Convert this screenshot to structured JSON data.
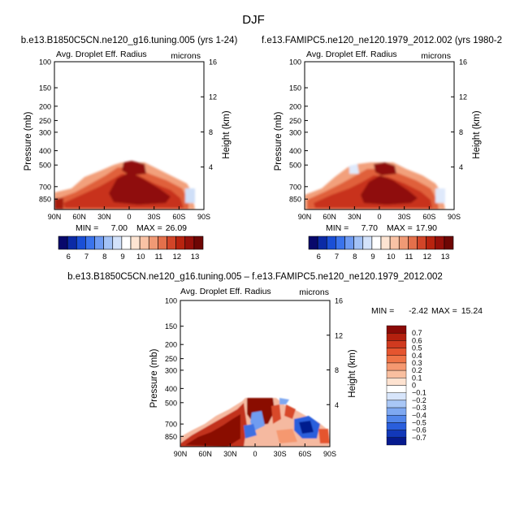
{
  "figure": {
    "title": "DJF"
  },
  "chart_data": [
    {
      "type": "heatmap",
      "title": "b.e13.B1850C5CN.ne120_g16.tuning.005 (yrs 1-24)",
      "subtitle": "Avg. Droplet Eff. Radius",
      "units": "microns",
      "ylabel": "Pressure (mb)",
      "ylabel_right": "Height (km)",
      "x_ticks": [
        "90N",
        "60N",
        "30N",
        "0",
        "30S",
        "60S",
        "90S"
      ],
      "y_ticks": [
        "100",
        "150",
        "200",
        "250",
        "300",
        "400",
        "500",
        "700",
        "850"
      ],
      "y_ticks_right": [
        "16",
        "12",
        "8",
        "4"
      ],
      "y_scale": "log (pressure)",
      "min_label": "MIN =",
      "min_value": "7.00",
      "max_label": "MAX =",
      "max_value": "26.09",
      "colorbar": {
        "orientation": "horizontal",
        "tick_labels": [
          "6",
          "7",
          "8",
          "9",
          "10",
          "11",
          "12",
          "13"
        ],
        "colors": [
          "#08086b",
          "#0b2aa6",
          "#1a4fd6",
          "#3a73ec",
          "#6d9af2",
          "#a3c2f6",
          "#d3e2fa",
          "#ffffff",
          "#fde4d2",
          "#f9c2a5",
          "#f09a75",
          "#e4704b",
          "#d24528",
          "#b8230f",
          "#96100a",
          "#6e0604"
        ]
      }
    },
    {
      "type": "heatmap",
      "title": "f.e13.FAMIPC5.ne120_ne120.1979_2012.002 (yrs 1980-2",
      "subtitle": "Avg. Droplet Eff. Radius",
      "units": "microns",
      "ylabel": "Pressure (mb)",
      "ylabel_right": "Height (km)",
      "x_ticks": [
        "90N",
        "60N",
        "30N",
        "0",
        "30S",
        "60S",
        "90S"
      ],
      "y_ticks": [
        "100",
        "150",
        "200",
        "250",
        "300",
        "400",
        "500",
        "700",
        "850"
      ],
      "y_ticks_right": [
        "16",
        "12",
        "8",
        "4"
      ],
      "y_scale": "log (pressure)",
      "min_label": "MIN =",
      "min_value": "7.70",
      "max_label": "MAX =",
      "max_value": "17.90",
      "colorbar": {
        "orientation": "horizontal",
        "tick_labels": [
          "6",
          "7",
          "8",
          "9",
          "10",
          "11",
          "12",
          "13"
        ],
        "colors": [
          "#08086b",
          "#0b2aa6",
          "#1a4fd6",
          "#3a73ec",
          "#6d9af2",
          "#a3c2f6",
          "#d3e2fa",
          "#ffffff",
          "#fde4d2",
          "#f9c2a5",
          "#f09a75",
          "#e4704b",
          "#d24528",
          "#b8230f",
          "#96100a",
          "#6e0604"
        ]
      }
    },
    {
      "type": "heatmap",
      "title": "b.e13.B1850C5CN.ne120_g16.tuning.005 – f.e13.FAMIPC5.ne120_ne120.1979_2012.002",
      "subtitle": "Avg. Droplet Eff. Radius",
      "units": "microns",
      "ylabel": "Pressure (mb)",
      "ylabel_right": "Height (km)",
      "x_ticks": [
        "90N",
        "60N",
        "30N",
        "0",
        "30S",
        "60S",
        "90S"
      ],
      "y_ticks": [
        "100",
        "150",
        "200",
        "250",
        "300",
        "400",
        "500",
        "700",
        "850"
      ],
      "y_ticks_right": [
        "16",
        "12",
        "8",
        "4"
      ],
      "y_scale": "log (pressure)",
      "min_label": "MIN =",
      "min_value": "-2.42",
      "max_label": "MAX =",
      "max_value": "15.24",
      "colorbar": {
        "orientation": "vertical",
        "tick_labels": [
          "0.7",
          "0.6",
          "0.5",
          "0.4",
          "0.3",
          "0.2",
          "0.1",
          "0",
          "−0.1",
          "−0.2",
          "−0.3",
          "−0.4",
          "−0.5",
          "−0.6",
          "−0.7"
        ],
        "colors": [
          "#8a0a06",
          "#b4200e",
          "#d03a1f",
          "#e5552f",
          "#ef7447",
          "#f59870",
          "#f9bf9f",
          "#fde2d0",
          "#ffffff",
          "#d7e5fb",
          "#a9c7f6",
          "#7ea8f1",
          "#5185ea",
          "#2a5edc",
          "#1238b9",
          "#061a8e"
        ]
      }
    }
  ]
}
